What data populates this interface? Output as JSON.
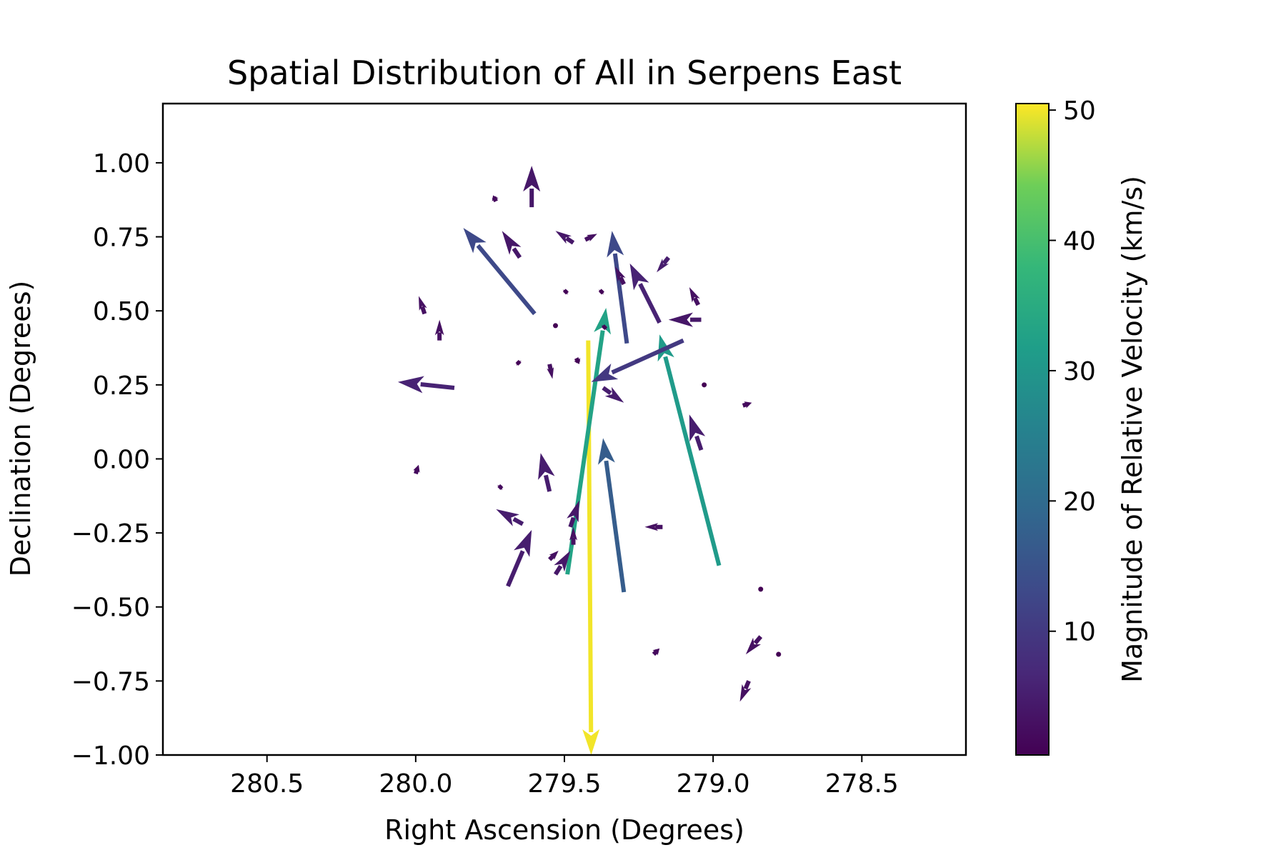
{
  "chart_data": {
    "type": "quiver",
    "title": "Spatial Distribution of All in Serpens East",
    "xlabel": "Right Ascension (Degrees)",
    "ylabel": "Declination (Degrees)",
    "x_inverted": true,
    "xlim": [
      280.85,
      278.15
    ],
    "ylim": [
      -1.0,
      1.2
    ],
    "xticks": [
      280.5,
      280.0,
      279.5,
      279.0,
      278.5
    ],
    "xtick_labels": [
      "280.5",
      "280.0",
      "279.5",
      "279.0",
      "278.5"
    ],
    "yticks": [
      1.0,
      0.75,
      0.5,
      0.25,
      0.0,
      -0.25,
      -0.5,
      -0.75,
      -1.0
    ],
    "ytick_labels": [
      "1.00",
      "0.75",
      "0.50",
      "0.25",
      "0.00",
      "−0.25",
      "−0.50",
      "−0.75",
      "−1.00"
    ],
    "grid": false,
    "colorbar": {
      "label": "Magnitude of Relative Velocity (km/s)",
      "colormap": "viridis",
      "range": [
        0.5,
        50.5
      ],
      "ticks": [
        10,
        20,
        30,
        40,
        50
      ],
      "tick_labels": [
        "10",
        "20",
        "30",
        "40",
        "50"
      ]
    },
    "arrows": [
      {
        "x": 279.42,
        "y": 0.4,
        "u": -0.01,
        "v": -1.4,
        "mag": 50
      },
      {
        "x": 279.49,
        "y": -0.39,
        "u": -0.13,
        "v": 0.9,
        "mag": 33
      },
      {
        "x": 278.98,
        "y": -0.36,
        "u": 0.2,
        "v": 0.78,
        "mag": 31
      },
      {
        "x": 279.3,
        "y": -0.45,
        "u": 0.07,
        "v": 0.52,
        "mag": 17
      },
      {
        "x": 279.6,
        "y": 0.49,
        "u": 0.24,
        "v": 0.29,
        "mag": 13
      },
      {
        "x": 279.29,
        "y": 0.39,
        "u": 0.05,
        "v": 0.38,
        "mag": 13
      },
      {
        "x": 279.1,
        "y": 0.4,
        "u": 0.31,
        "v": -0.14,
        "mag": 10
      },
      {
        "x": 279.18,
        "y": 0.46,
        "u": 0.1,
        "v": 0.2,
        "mag": 6
      },
      {
        "x": 279.87,
        "y": 0.24,
        "u": 0.19,
        "v": 0.02,
        "mag": 6
      },
      {
        "x": 279.37,
        "y": 0.24,
        "u": -0.07,
        "v": -0.05,
        "mag": 5
      },
      {
        "x": 279.04,
        "y": 0.03,
        "u": 0.04,
        "v": 0.12,
        "mag": 5
      },
      {
        "x": 279.55,
        "y": -0.11,
        "u": 0.03,
        "v": 0.13,
        "mag": 5
      },
      {
        "x": 279.64,
        "y": -0.22,
        "u": 0.09,
        "v": 0.05,
        "mag": 5
      },
      {
        "x": 279.69,
        "y": -0.43,
        "u": -0.08,
        "v": 0.19,
        "mag": 5
      },
      {
        "x": 279.48,
        "y": -0.23,
        "u": -0.03,
        "v": 0.09,
        "mag": 4
      },
      {
        "x": 279.53,
        "y": -0.39,
        "u": -0.05,
        "v": 0.08,
        "mag": 4
      },
      {
        "x": 279.55,
        "y": -0.34,
        "u": -0.03,
        "v": 0.03,
        "mag": 3
      },
      {
        "x": 279.47,
        "y": -0.29,
        "u": 0.0,
        "v": 0.06,
        "mag": 3
      },
      {
        "x": 279.15,
        "y": 0.68,
        "u": 0.04,
        "v": -0.05,
        "mag": 5
      },
      {
        "x": 279.04,
        "y": 0.47,
        "u": 0.11,
        "v": 0.0,
        "mag": 4
      },
      {
        "x": 279.05,
        "y": 0.52,
        "u": 0.03,
        "v": 0.06,
        "mag": 3
      },
      {
        "x": 279.61,
        "y": 0.85,
        "u": 0.0,
        "v": 0.14,
        "mag": 4
      },
      {
        "x": 279.65,
        "y": 0.68,
        "u": 0.06,
        "v": 0.09,
        "mag": 4
      },
      {
        "x": 279.47,
        "y": 0.73,
        "u": 0.06,
        "v": 0.04,
        "mag": 4
      },
      {
        "x": 279.3,
        "y": 0.59,
        "u": 0.03,
        "v": 0.06,
        "mag": 3
      },
      {
        "x": 279.92,
        "y": 0.4,
        "u": 0.0,
        "v": 0.07,
        "mag": 3
      },
      {
        "x": 279.55,
        "y": 0.32,
        "u": -0.01,
        "v": -0.05,
        "mag": 3
      },
      {
        "x": 279.97,
        "y": 0.49,
        "u": 0.02,
        "v": 0.06,
        "mag": 3
      },
      {
        "x": 279.17,
        "y": -0.23,
        "u": 0.06,
        "v": 0.0,
        "mag": 3
      },
      {
        "x": 278.84,
        "y": -0.6,
        "u": 0.05,
        "v": -0.06,
        "mag": 3
      },
      {
        "x": 278.88,
        "y": -0.75,
        "u": 0.03,
        "v": -0.07,
        "mag": 3
      },
      {
        "x": 279.43,
        "y": 0.74,
        "u": -0.04,
        "v": 0.02,
        "mag": 3
      },
      {
        "x": 279.2,
        "y": -0.66,
        "u": -0.02,
        "v": 0.02,
        "mag": 2
      },
      {
        "x": 280.0,
        "y": -0.05,
        "u": -0.01,
        "v": 0.03,
        "mag": 2
      },
      {
        "x": 279.72,
        "y": -0.1,
        "u": -0.01,
        "v": 0.01,
        "mag": 2
      },
      {
        "x": 278.9,
        "y": 0.18,
        "u": -0.03,
        "v": 0.01,
        "mag": 2
      },
      {
        "x": 279.73,
        "y": 0.87,
        "u": 0.01,
        "v": 0.02,
        "mag": 2
      },
      {
        "x": 279.38,
        "y": 0.56,
        "u": -0.01,
        "v": 0.01,
        "mag": 1
      },
      {
        "x": 279.5,
        "y": 0.56,
        "u": -0.01,
        "v": 0.01,
        "mag": 1
      },
      {
        "x": 279.37,
        "y": 0.44,
        "u": -0.01,
        "v": 0.01,
        "mag": 1
      },
      {
        "x": 279.46,
        "y": 0.34,
        "u": -0.01,
        "v": -0.02,
        "mag": 1
      },
      {
        "x": 279.65,
        "y": 0.32,
        "u": 0.01,
        "v": 0.01,
        "mag": 1
      },
      {
        "x": 279.53,
        "y": 0.45,
        "u": 0.0,
        "v": 0.0,
        "mag": 0.5
      },
      {
        "x": 279.03,
        "y": 0.25,
        "u": 0.0,
        "v": 0.0,
        "mag": 0.5
      },
      {
        "x": 278.84,
        "y": -0.44,
        "u": 0.0,
        "v": 0.0,
        "mag": 0.5
      },
      {
        "x": 278.78,
        "y": -0.66,
        "u": 0.0,
        "v": 0.0,
        "mag": 0.5
      }
    ]
  }
}
